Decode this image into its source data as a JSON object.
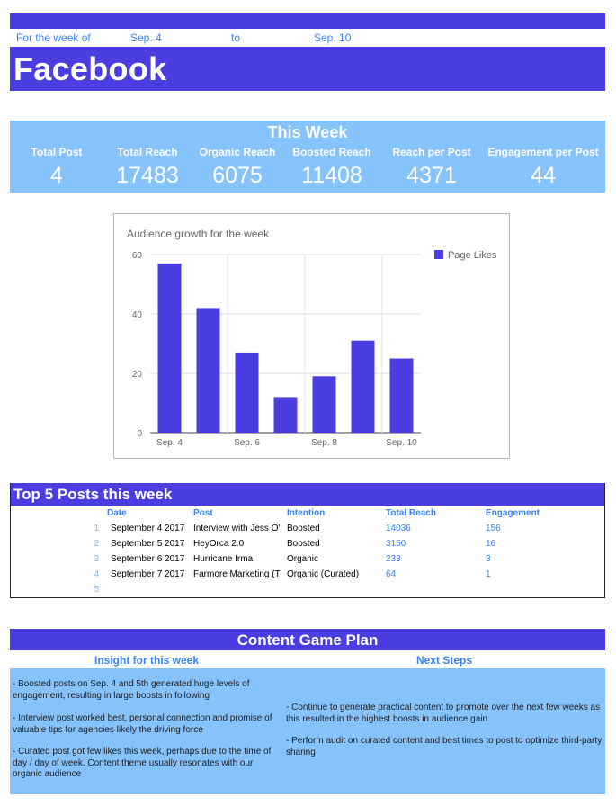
{
  "week": {
    "prefix": "For the week of",
    "start": "Sep. 4",
    "to": "to",
    "end": "Sep. 10"
  },
  "title": "Facebook",
  "stats": {
    "heading": "This Week",
    "items": [
      {
        "label": "Total Post",
        "value": "4"
      },
      {
        "label": "Total Reach",
        "value": "17483"
      },
      {
        "label": "Organic Reach",
        "value": "6075"
      },
      {
        "label": "Boosted Reach",
        "value": "11408"
      },
      {
        "label": "Reach per Post",
        "value": "4371"
      },
      {
        "label": "Engagement per Post",
        "value": "44"
      }
    ]
  },
  "chart_data": {
    "type": "bar",
    "title": "Audience growth for the week",
    "categories": [
      "Sep. 4",
      "Sep. 5",
      "Sep. 6",
      "Sep. 7",
      "Sep. 8",
      "Sep. 9",
      "Sep. 10"
    ],
    "tick_labels_x": [
      "Sep. 4",
      "",
      "Sep. 6",
      "",
      "Sep. 8",
      "",
      "Sep. 10"
    ],
    "series": [
      {
        "name": "Page Likes",
        "values": [
          57,
          42,
          27,
          12,
          19,
          31,
          25
        ]
      }
    ],
    "ylim": [
      0,
      60
    ],
    "yticks": [
      0,
      20,
      40,
      60
    ],
    "grid": true,
    "legend": "right",
    "color": "#4b3ee0"
  },
  "top5": {
    "heading": "Top 5 Posts this week",
    "headers": [
      "Date",
      "Post",
      "Intention",
      "Total Reach",
      "Engagement"
    ],
    "rows": [
      {
        "n": "1",
        "date": "September 4 2017",
        "post": "Interview with Jess O'",
        "intention": "Boosted",
        "reach": "14036",
        "engagement": "156"
      },
      {
        "n": "2",
        "date": "September 5 2017",
        "post": "HeyOrca 2.0",
        "intention": "Boosted",
        "reach": "3150",
        "engagement": "16"
      },
      {
        "n": "3",
        "date": "September 6 2017",
        "post": "Hurricane Irma",
        "intention": "Organic",
        "reach": "233",
        "engagement": "3"
      },
      {
        "n": "4",
        "date": "September 7 2017",
        "post": "Farmore Marketing (T",
        "intention": "Organic (Curated)",
        "reach": "64",
        "engagement": "1"
      },
      {
        "n": "5",
        "date": "",
        "post": "",
        "intention": "",
        "reach": "",
        "engagement": ""
      }
    ]
  },
  "plan": {
    "heading": "Content Game Plan",
    "insight_heading": "Insight for this week",
    "next_heading": "Next Steps",
    "insights": [
      "- Boosted posts on Sep. 4 and 5th generated huge levels of engagement, resulting in large boosts in following",
      "- Interview post worked best, personal connection and promise of valuable tips for agencies likely the driving force",
      "- Curated post got few likes this week, perhaps due to the time of day / day of week. Content theme usually resonates with our organic audience"
    ],
    "next_steps": [
      "- Continue to generate practical content to promote over the next few weeks as this resulted in the highest boosts in audience gain",
      "- Perform audit on curated content and best times to post to optimize third-party sharing"
    ]
  }
}
